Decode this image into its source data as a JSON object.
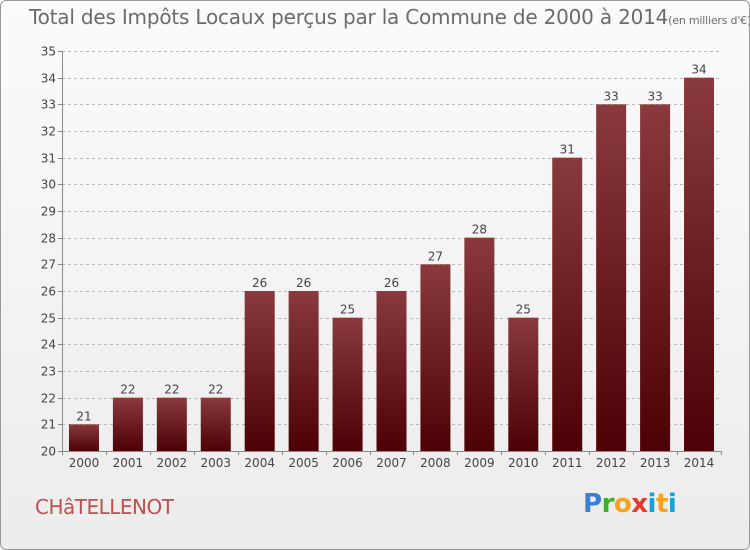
{
  "header": {
    "title": "Total des Impôts Locaux perçus par la Commune de 2000 à 2014",
    "unit": "(en milliers d'€)"
  },
  "footer": {
    "commune": "CHâTELLENOT",
    "brand_letters": [
      "P",
      "r",
      "o",
      "x",
      "i",
      "t",
      "i"
    ]
  },
  "colors": {
    "bar_top": "#8a3a3e",
    "bar_bottom": "#4d0005",
    "grid": "#b8b8b8",
    "text": "#444444"
  },
  "chart_data": {
    "type": "bar",
    "title": "Total des Impôts Locaux perçus par la Commune de 2000 à 2014",
    "xlabel": "",
    "ylabel": "",
    "ylim": [
      20,
      35
    ],
    "yticks": [
      20,
      21,
      22,
      23,
      24,
      25,
      26,
      27,
      28,
      29,
      30,
      31,
      32,
      33,
      34,
      35
    ],
    "grid": true,
    "categories": [
      "2000",
      "2001",
      "2002",
      "2003",
      "2004",
      "2005",
      "2006",
      "2007",
      "2008",
      "2009",
      "2010",
      "2011",
      "2012",
      "2013",
      "2014"
    ],
    "values": [
      21,
      22,
      22,
      22,
      26,
      26,
      25,
      26,
      27,
      28,
      25,
      31,
      33,
      33,
      34
    ],
    "data_labels": [
      "21",
      "22",
      "22",
      "22",
      "26",
      "26",
      "25",
      "26",
      "27",
      "28",
      "25",
      "31",
      "33",
      "33",
      "34"
    ]
  }
}
